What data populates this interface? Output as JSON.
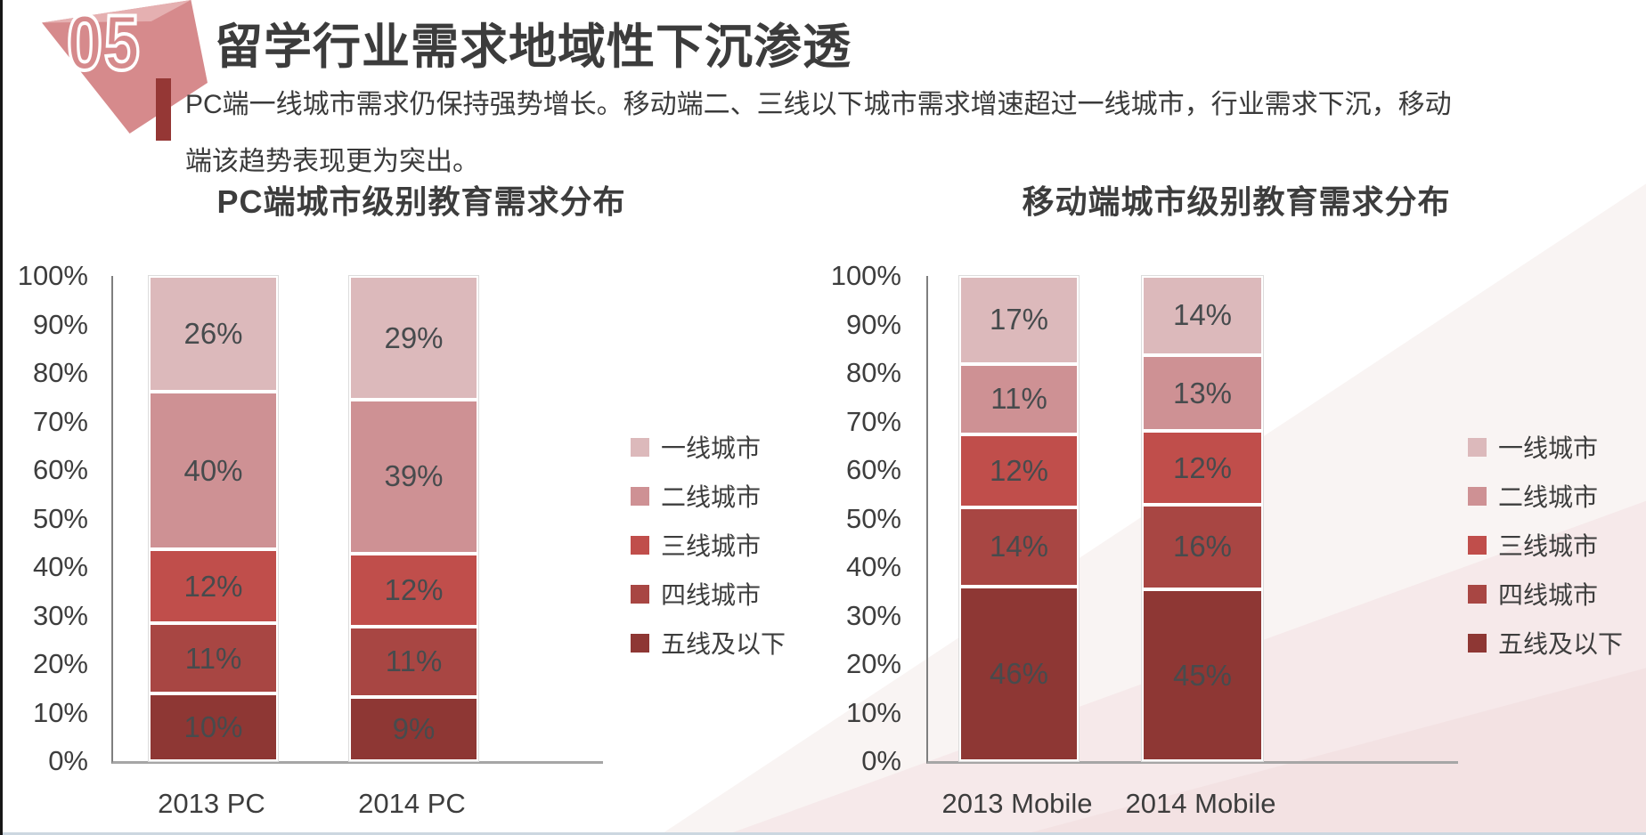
{
  "slide": {
    "badge_number": "05",
    "title": "留学行业需求地域性下沉渗透",
    "description_line1": "PC端一线城市需求仍保持强势增长。移动端二、三线以下城市需求增速超过一线城市，行业需求下沉，移动",
    "description_line2": "端该趋势表现更为突出。"
  },
  "colors": {
    "tier1": "#dcb9bb",
    "tier2": "#ce9194",
    "tier3": "#c04e4b",
    "tier4": "#a84643",
    "tier5": "#8e3734",
    "accent_bar": "#953735",
    "badge_pink": "#d68a8c",
    "title_text": "#3c3c3c"
  },
  "chart_data": [
    {
      "type": "bar",
      "stacked": true,
      "title": "PC端城市级别教育需求分布",
      "categories": [
        "2013 PC",
        "2014 PC"
      ],
      "series": [
        {
          "name": "一线城市",
          "color": "#dcb9bb",
          "values": [
            26,
            29
          ]
        },
        {
          "name": "二线城市",
          "color": "#ce9194",
          "values": [
            40,
            39
          ]
        },
        {
          "name": "三线城市",
          "color": "#c04e4b",
          "values": [
            12,
            12
          ]
        },
        {
          "name": "四线城市",
          "color": "#a84643",
          "values": [
            11,
            11
          ]
        },
        {
          "name": "五线及以下",
          "color": "#8e3734",
          "values": [
            10,
            9
          ]
        }
      ],
      "y_axis": {
        "min": 0,
        "max": 100,
        "step": 10,
        "tick_suffix": "%"
      },
      "grid": false,
      "legend_position": "right"
    },
    {
      "type": "bar",
      "stacked": true,
      "title": "移动端城市级别教育需求分布",
      "categories": [
        "2013 Mobile",
        "2014 Mobile"
      ],
      "series": [
        {
          "name": "一线城市",
          "color": "#dcb9bb",
          "values": [
            17,
            14
          ]
        },
        {
          "name": "二线城市",
          "color": "#ce9194",
          "values": [
            11,
            13
          ]
        },
        {
          "name": "三线城市",
          "color": "#c04e4b",
          "values": [
            12,
            12
          ]
        },
        {
          "name": "四线城市",
          "color": "#a84643",
          "values": [
            14,
            16
          ]
        },
        {
          "name": "五线及以下",
          "color": "#8e3734",
          "values": [
            46,
            45
          ]
        }
      ],
      "y_axis": {
        "min": 0,
        "max": 100,
        "step": 10,
        "tick_suffix": "%"
      },
      "grid": false,
      "legend_position": "right"
    }
  ]
}
